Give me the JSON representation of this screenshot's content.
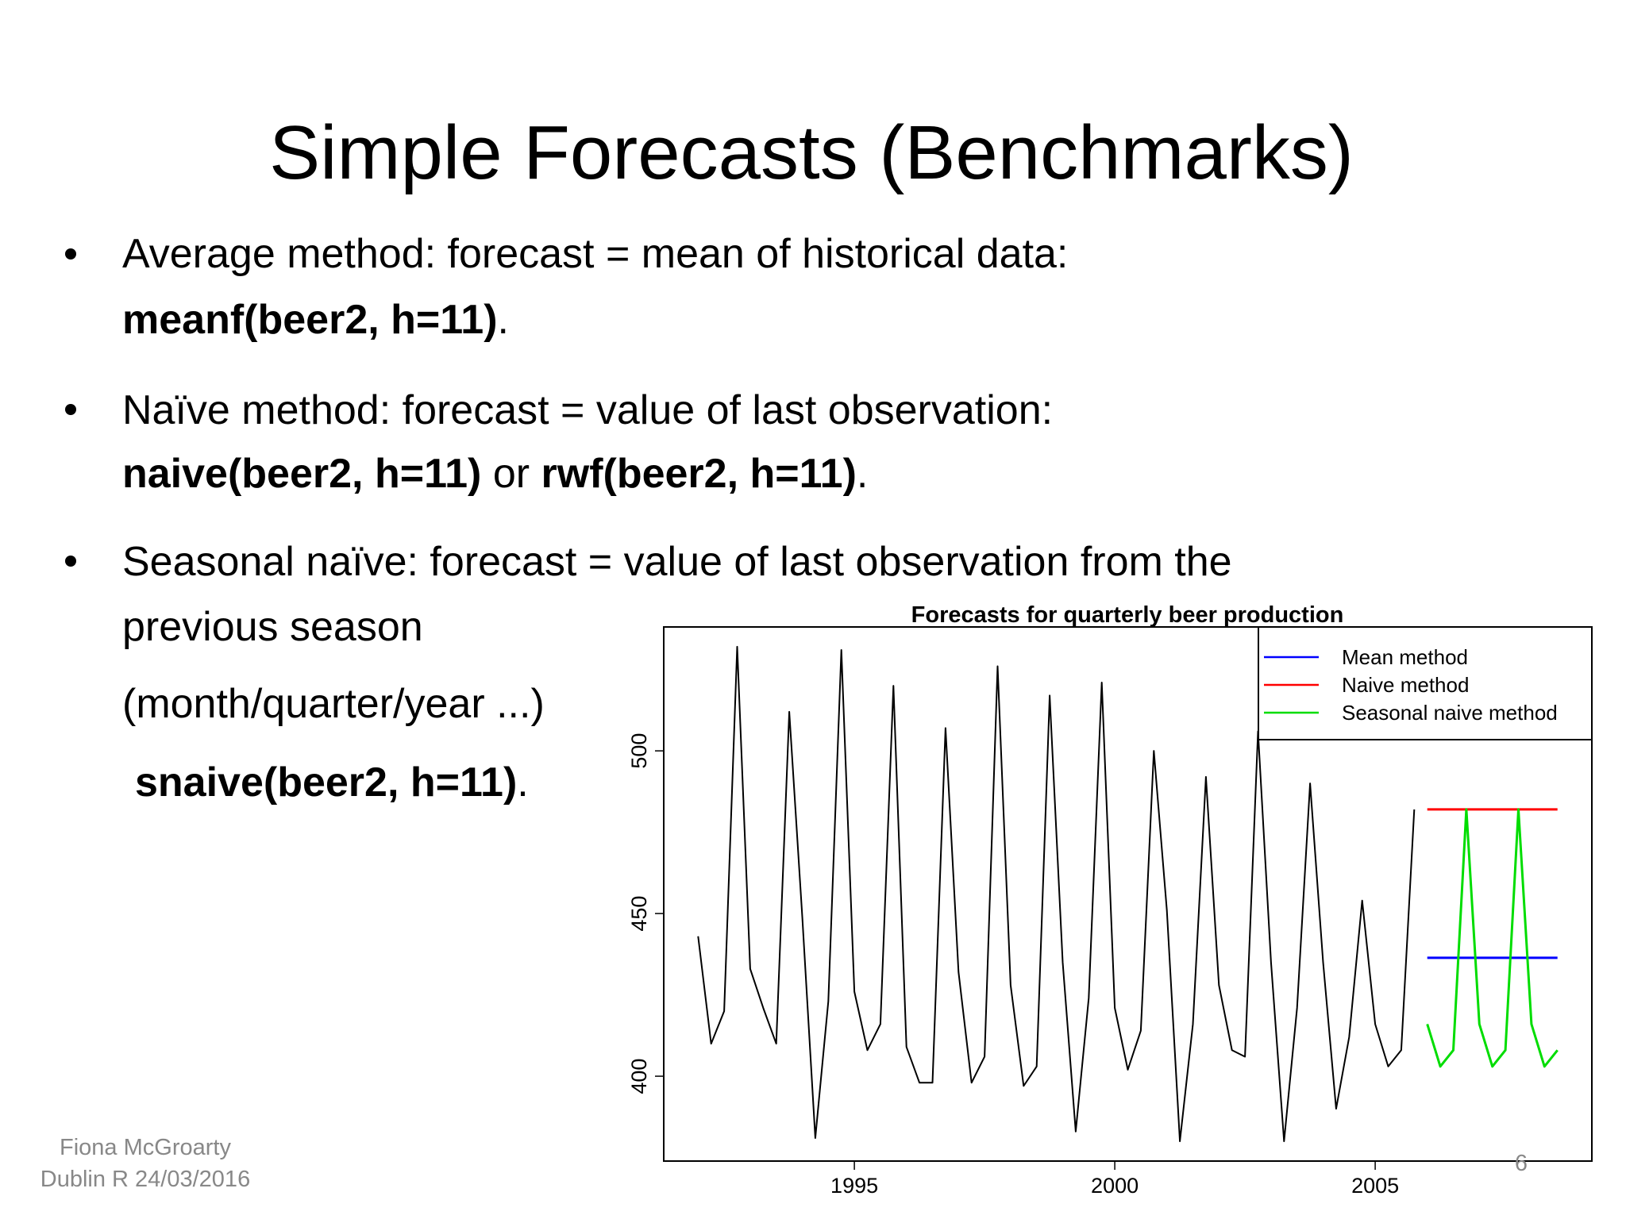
{
  "title": "Simple Forecasts (Benchmarks)",
  "bullets": [
    {
      "lines": [
        {
          "text": "Average method: forecast = mean of historical data:"
        },
        {
          "code": "meanf(beer2, h=11)",
          "end": "."
        }
      ]
    },
    {
      "lines": [
        {
          "text": "Naïve method: forecast = value of last observation:"
        },
        {
          "code": "naive(beer2, h=11)",
          "joiner": "or",
          "code2": "rwf(beer2, h=11)",
          "end": "."
        }
      ]
    },
    {
      "lines": [
        {
          "text": "Seasonal naïve: forecast = value of last observation from the"
        },
        {
          "text": "previous season"
        },
        {
          "text": "(month/quarter/year ...)"
        },
        {
          "code": "snaive(beer2, h=11)",
          "end": "."
        }
      ]
    }
  ],
  "footer": {
    "author": "Fiona McGroarty",
    "event": "Dublin R 24/03/2016",
    "page": "6"
  },
  "chart_data": {
    "type": "line",
    "title": "Forecasts for quarterly beer production",
    "xlim": [
      1991.34,
      2009.16
    ],
    "ylim": [
      373.92,
      538.08
    ],
    "xticks": [
      1995,
      2000,
      2005
    ],
    "yticks": [
      400,
      450,
      500
    ],
    "grid": false,
    "legend": "topright",
    "series": [
      {
        "color": "#000000",
        "x": [
          1992,
          1992.25,
          1992.5,
          1992.75,
          1993,
          1993.25,
          1993.5,
          1993.75,
          1994,
          1994.25,
          1994.5,
          1994.75,
          1995,
          1995.25,
          1995.5,
          1995.75,
          1996,
          1996.25,
          1996.5,
          1996.75,
          1997,
          1997.25,
          1997.5,
          1997.75,
          1998,
          1998.25,
          1998.5,
          1998.75,
          1999,
          1999.25,
          1999.5,
          1999.75,
          2000,
          2000.25,
          2000.5,
          2000.75,
          2001,
          2001.25,
          2001.5,
          2001.75,
          2002,
          2002.25,
          2002.5,
          2002.75,
          2003,
          2003.25,
          2003.5,
          2003.75,
          2004,
          2004.25,
          2004.5,
          2004.75,
          2005,
          2005.25,
          2005.5,
          2005.75
        ],
        "values": [
          443,
          410,
          420,
          532,
          433,
          421,
          410,
          512,
          449,
          381,
          423,
          531,
          426,
          408,
          416,
          520,
          409,
          398,
          398,
          507,
          432,
          398,
          406,
          526,
          428,
          397,
          403,
          517,
          435,
          383,
          424,
          521,
          421,
          402,
          414,
          500,
          451,
          380,
          416,
          492,
          428,
          408,
          406,
          506,
          435,
          380,
          421,
          490,
          435,
          390,
          412,
          454,
          416,
          403,
          408,
          482
        ]
      },
      {
        "name": "Mean method",
        "color": "#0000ff",
        "x": [
          2006,
          2006.25,
          2006.5,
          2006.75,
          2007,
          2007.25,
          2007.5,
          2007.75,
          2008,
          2008.25,
          2008.5
        ],
        "values": [
          436.4,
          436.4,
          436.4,
          436.4,
          436.4,
          436.4,
          436.4,
          436.4,
          436.4,
          436.4,
          436.4
        ]
      },
      {
        "name": "Naive method",
        "color": "#ff0000",
        "x": [
          2006,
          2006.25,
          2006.5,
          2006.75,
          2007,
          2007.25,
          2007.5,
          2007.75,
          2008,
          2008.25,
          2008.5
        ],
        "values": [
          482,
          482,
          482,
          482,
          482,
          482,
          482,
          482,
          482,
          482,
          482
        ]
      },
      {
        "name": "Seasonal naive method",
        "color": "#00dd00",
        "x": [
          2006,
          2006.25,
          2006.5,
          2006.75,
          2007,
          2007.25,
          2007.5,
          2007.75,
          2008,
          2008.25,
          2008.5
        ],
        "values": [
          416,
          403,
          408,
          482,
          416,
          403,
          408,
          482,
          416,
          403,
          408
        ]
      }
    ]
  }
}
